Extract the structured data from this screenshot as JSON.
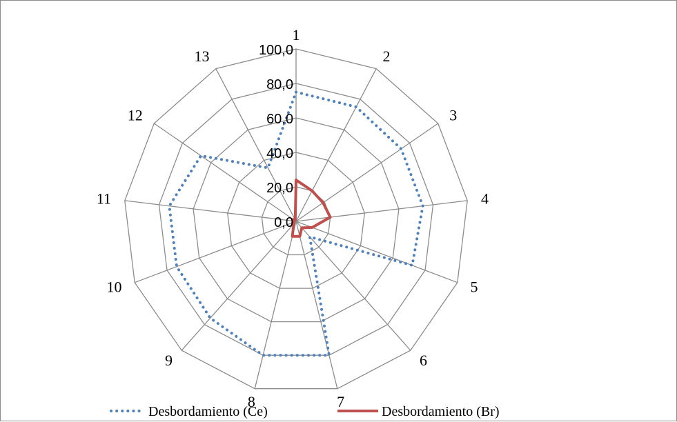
{
  "chart_data": {
    "type": "radar",
    "categories": [
      "1",
      "2",
      "3",
      "4",
      "5",
      "6",
      "7",
      "8",
      "9",
      "10",
      "11",
      "12",
      "13"
    ],
    "ylim": [
      0,
      100
    ],
    "ticks": [
      "0,0",
      "20,0",
      "40,0",
      "60,0",
      "80,0",
      "100,0"
    ],
    "tick_values": [
      0,
      20,
      40,
      60,
      80,
      100
    ],
    "grid": true,
    "legend_position": "bottom",
    "series": [
      {
        "name": "Desbordamiento (Ce)",
        "color": "#4f81bd",
        "style": "dotted",
        "values": [
          75,
          75,
          74,
          74,
          72,
          12,
          80,
          80,
          75,
          74,
          74,
          67,
          35
        ]
      },
      {
        "name": "Desbordamiento (Br)",
        "color": "#c0504d",
        "style": "solid",
        "values": [
          24,
          20,
          19,
          20,
          10,
          5,
          9,
          9,
          2,
          2,
          1,
          2,
          1
        ]
      }
    ]
  }
}
